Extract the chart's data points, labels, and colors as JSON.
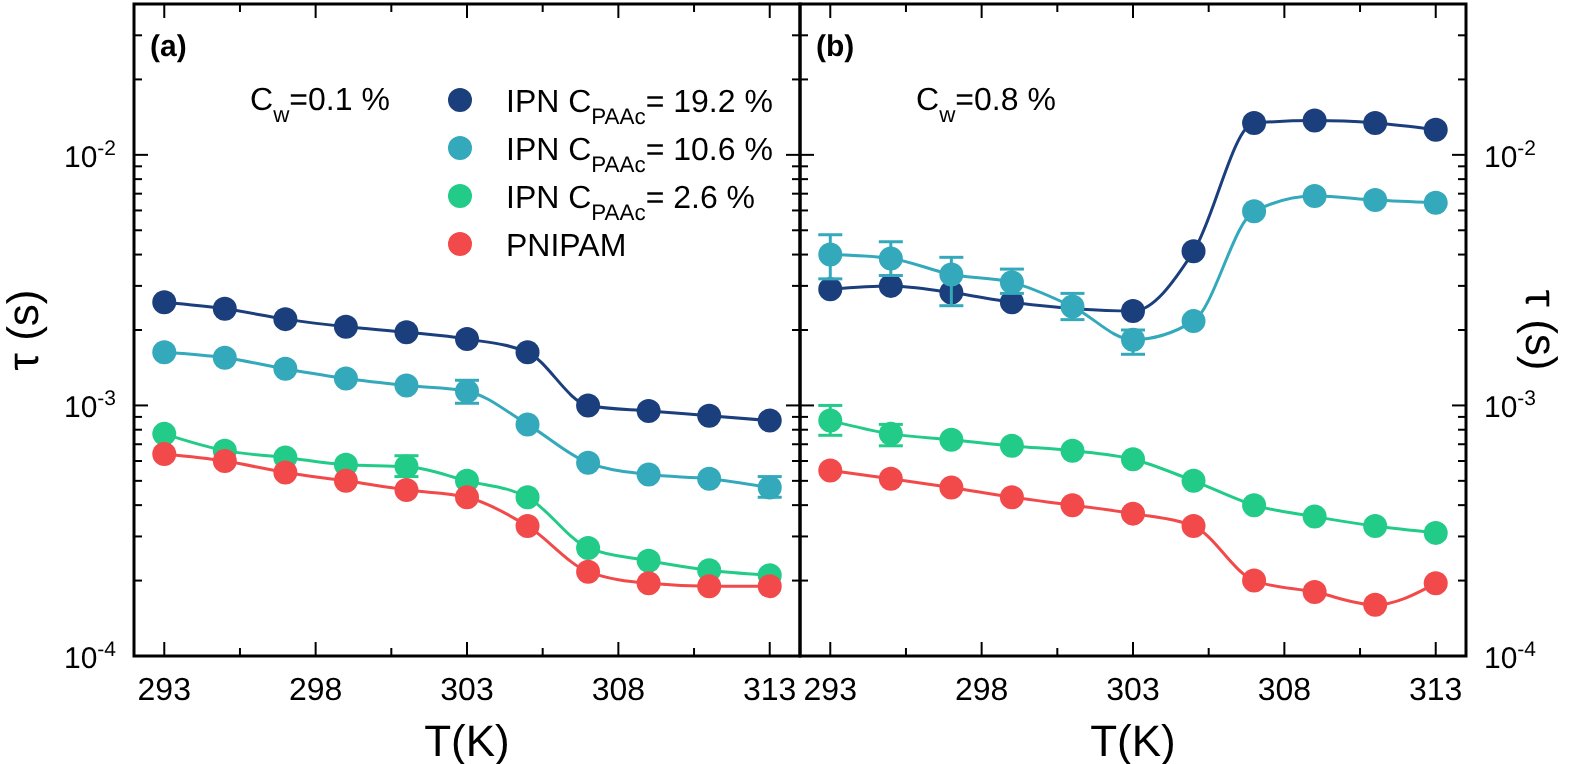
{
  "chart_data": [
    {
      "type": "line",
      "xlabel": "T(K)",
      "ylabel": "τ (s)",
      "annotations": [
        "(a)",
        "C$_{w}$=0.1 %"
      ],
      "log": "y",
      "marker": "circle",
      "line_style": "solid",
      "legend": "top right",
      "grid": false,
      "x": [
        293,
        295,
        297,
        299,
        301,
        303,
        305,
        307,
        309,
        311,
        313
      ],
      "xlim": [
        292,
        314
      ],
      "ylim": [
        0.0001,
        0.04
      ],
      "xticks": [
        293,
        {
          "value": 295.5,
          "label": null
        },
        298,
        {
          "value": 300.5,
          "label": null
        },
        303,
        {
          "value": 305.5,
          "label": null
        },
        308,
        {
          "value": 310.5,
          "label": null
        },
        313
      ],
      "yticks": [
        {
          "value": 0.0001,
          "label": "10$^{-4}$"
        },
        {
          "value": 0.0002,
          "label": null
        },
        {
          "value": 0.0003,
          "label": null
        },
        {
          "value": 0.0004,
          "label": null
        },
        {
          "value": 0.0005,
          "label": null
        },
        {
          "value": 0.0006,
          "label": null
        },
        {
          "value": 0.0007,
          "label": null
        },
        {
          "value": 0.0008,
          "label": null
        },
        {
          "value": 0.0009,
          "label": null
        },
        {
          "value": 0.001,
          "label": "10$^{-3}$"
        },
        {
          "value": 0.002,
          "label": null
        },
        {
          "value": 0.003,
          "label": null
        },
        {
          "value": 0.004,
          "label": null
        },
        {
          "value": 0.005,
          "label": null
        },
        {
          "value": 0.006,
          "label": null
        },
        {
          "value": 0.007,
          "label": null
        },
        {
          "value": 0.008,
          "label": null
        },
        {
          "value": 0.009,
          "label": null
        },
        {
          "value": 0.01,
          "label": "10$^{-2}$"
        },
        {
          "value": 0.02,
          "label": null
        },
        {
          "value": 0.03,
          "label": null
        }
      ],
      "series": [
        {
          "name": "IPN C$_{PAAc}$= 19.2 %",
          "color": "#1b3f7c",
          "values": [
            0.00258,
            0.00243,
            0.00221,
            0.00206,
            0.00196,
            0.00184,
            0.00163,
            0.001,
            0.00095,
            0.00091,
            0.00087
          ]
        },
        {
          "name": "IPN C$_{PAAc}$= 10.6 %",
          "color": "#34a9bb",
          "values": [
            0.00163,
            0.00155,
            0.0014,
            0.00128,
            0.0012,
            0.00114,
            0.00084,
            0.00059,
            0.00053,
            0.00051,
            0.00047
          ],
          "errors": [
            null,
            null,
            null,
            null,
            null,
            [
              0.00102,
              0.00126
            ],
            null,
            null,
            null,
            null,
            [
              0.00043,
              0.00052
            ]
          ]
        },
        {
          "name": "IPN C$_{PAAc}$= 2.6 %",
          "color": "#22cc88",
          "values": [
            0.00077,
            0.00066,
            0.00062,
            0.00058,
            0.00057,
            0.0005,
            0.00043,
            0.00027,
            0.00024,
            0.00022,
            0.00021
          ],
          "errors": [
            null,
            null,
            null,
            null,
            [
              0.00052,
              0.00063
            ],
            null,
            null,
            null,
            null,
            null,
            null
          ]
        },
        {
          "name": "PNIPAM",
          "color": "#f24a4a",
          "values": [
            0.00064,
            0.0006,
            0.00054,
            0.0005,
            0.00046,
            0.00043,
            0.00033,
            0.000217,
            0.000195,
            0.00019,
            0.00019
          ]
        }
      ]
    },
    {
      "type": "line",
      "xlabel": "T(K)",
      "ylabel": "τ (s)",
      "annotations": [
        "(b)",
        "C$_{w}$=0.8 %"
      ],
      "log": "y",
      "marker": "circle",
      "line_style": "solid",
      "grid": false,
      "x": [
        293,
        295,
        297,
        299,
        301,
        303,
        305,
        307,
        309,
        311,
        313
      ],
      "xlim": [
        292,
        314
      ],
      "ylim": [
        0.0001,
        0.04
      ],
      "xticks": [
        293,
        {
          "value": 295.5,
          "label": null
        },
        298,
        {
          "value": 300.5,
          "label": null
        },
        303,
        {
          "value": 305.5,
          "label": null
        },
        308,
        {
          "value": 310.5,
          "label": null
        },
        313
      ],
      "yticks": [
        {
          "value": 0.0001,
          "label": "10$^{-4}$"
        },
        {
          "value": 0.0002,
          "label": null
        },
        {
          "value": 0.0003,
          "label": null
        },
        {
          "value": 0.0004,
          "label": null
        },
        {
          "value": 0.0005,
          "label": null
        },
        {
          "value": 0.0006,
          "label": null
        },
        {
          "value": 0.0007,
          "label": null
        },
        {
          "value": 0.0008,
          "label": null
        },
        {
          "value": 0.0009,
          "label": null
        },
        {
          "value": 0.001,
          "label": "10$^{-3}$"
        },
        {
          "value": 0.002,
          "label": null
        },
        {
          "value": 0.003,
          "label": null
        },
        {
          "value": 0.004,
          "label": null
        },
        {
          "value": 0.005,
          "label": null
        },
        {
          "value": 0.006,
          "label": null
        },
        {
          "value": 0.007,
          "label": null
        },
        {
          "value": 0.008,
          "label": null
        },
        {
          "value": 0.009,
          "label": null
        },
        {
          "value": 0.01,
          "label": "10$^{-2}$"
        },
        {
          "value": 0.02,
          "label": null
        },
        {
          "value": 0.03,
          "label": null
        }
      ],
      "series": [
        {
          "color": "#1b3f7c",
          "values": [
            0.00291,
            0.003,
            0.00282,
            0.00258,
            null,
            0.00238,
            0.00412,
            0.0134,
            0.0137,
            0.0134,
            0.0126
          ]
        },
        {
          "color": "#34a9bb",
          "values": [
            0.004,
            0.00386,
            0.00333,
            0.0031,
            0.00248,
            0.00183,
            0.00217,
            0.00595,
            0.00685,
            0.0066,
            0.00644
          ],
          "errors": [
            [
              0.0032,
              0.0048
            ],
            [
              0.0033,
              0.0045
            ],
            [
              0.0025,
              0.0039
            ],
            [
              0.0028,
              0.0035
            ],
            [
              0.0022,
              0.0028
            ],
            [
              0.0016,
              0.002
            ],
            null,
            null,
            null,
            null,
            null
          ]
        },
        {
          "color": "#22cc88",
          "values": [
            0.00087,
            0.00077,
            0.00073,
            0.00069,
            0.00066,
            0.00061,
            0.0005,
            0.0004,
            0.00036,
            0.00033,
            0.00031
          ],
          "errors": [
            [
              0.00076,
              0.001
            ],
            [
              0.00069,
              0.00084
            ],
            null,
            null,
            null,
            null,
            null,
            null,
            null,
            null,
            null
          ]
        },
        {
          "color": "#f24a4a",
          "values": [
            0.00055,
            0.00051,
            0.00047,
            0.00043,
            0.0004,
            0.00037,
            0.00033,
            0.0002,
            0.00018,
            0.00016,
            0.000195
          ]
        }
      ]
    }
  ]
}
